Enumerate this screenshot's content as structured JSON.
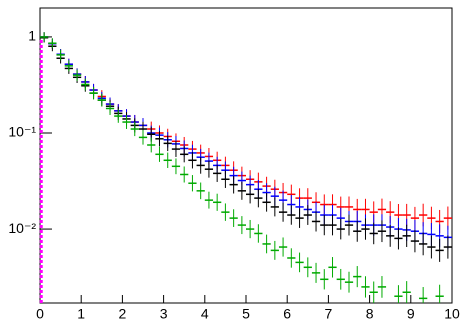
{
  "chart_data": {
    "type": "histogram",
    "log_y": true,
    "xlim": [
      0,
      10
    ],
    "xticks": [
      0,
      1,
      2,
      3,
      4,
      5,
      6,
      7,
      8,
      9,
      10
    ],
    "ylim": [
      0.0017,
      2.0
    ],
    "yticks": [
      {
        "value": 0.01,
        "label": "10⁻²"
      },
      {
        "value": 0.1,
        "label": "10⁻¹"
      },
      1
    ],
    "bins": [
      0,
      0.2,
      0.4,
      0.6,
      0.8,
      1,
      1.2,
      1.4,
      1.6,
      1.8,
      2,
      2.2,
      2.4,
      2.6,
      2.8,
      3,
      3.2,
      3.4,
      3.6,
      3.8,
      4,
      4.2,
      4.4,
      4.6,
      4.8,
      5,
      5.2,
      5.4,
      5.6,
      5.8,
      6,
      6.2,
      6.4,
      6.6,
      6.8,
      7,
      7.2,
      7.4,
      7.6,
      7.8,
      8,
      8.2,
      8.4,
      8.6,
      8.8,
      9,
      9.2,
      9.4,
      9.6,
      9.8,
      10
    ],
    "series": [
      {
        "color": "#ff0000",
        "values": [
          1.0,
          0.85,
          0.66,
          0.52,
          0.41,
          0.34,
          0.28,
          0.24,
          0.2,
          0.17,
          0.15,
          0.13,
          0.12,
          0.11,
          0.1,
          0.092,
          0.082,
          0.075,
          0.068,
          0.062,
          0.057,
          0.052,
          0.046,
          0.041,
          0.036,
          0.033,
          0.031,
          0.028,
          0.026,
          0.024,
          0.023,
          0.021,
          0.021,
          0.019,
          0.018,
          0.018,
          0.017,
          0.017,
          0.016,
          0.016,
          0.015,
          0.016,
          0.015,
          0.014,
          0.014,
          0.013,
          0.014,
          0.013,
          0.012,
          0.013
        ]
      },
      {
        "color": "#0000ff",
        "values": [
          1.0,
          0.85,
          0.66,
          0.52,
          0.41,
          0.34,
          0.28,
          0.23,
          0.2,
          0.17,
          0.15,
          0.13,
          0.12,
          0.1,
          0.095,
          0.085,
          0.077,
          0.069,
          0.062,
          0.056,
          0.051,
          0.046,
          0.041,
          0.036,
          0.032,
          0.029,
          0.026,
          0.024,
          0.022,
          0.02,
          0.018,
          0.017,
          0.016,
          0.015,
          0.014,
          0.014,
          0.013,
          0.012,
          0.012,
          0.011,
          0.011,
          0.011,
          0.0105,
          0.01,
          0.0098,
          0.0095,
          0.009,
          0.0088,
          0.0085,
          0.0082
        ]
      },
      {
        "color": "#000000",
        "values": [
          0.98,
          0.8,
          0.6,
          0.47,
          0.38,
          0.31,
          0.26,
          0.22,
          0.19,
          0.16,
          0.14,
          0.12,
          0.11,
          0.097,
          0.087,
          0.078,
          0.068,
          0.06,
          0.052,
          0.046,
          0.042,
          0.038,
          0.033,
          0.029,
          0.025,
          0.023,
          0.021,
          0.019,
          0.017,
          0.015,
          0.014,
          0.013,
          0.014,
          0.012,
          0.011,
          0.011,
          0.01,
          0.011,
          0.0095,
          0.01,
          0.009,
          0.0095,
          0.0085,
          0.008,
          0.0085,
          0.0075,
          0.007,
          0.0065,
          0.006,
          0.0065
        ]
      },
      {
        "color": "#00aa00",
        "values": [
          1.0,
          0.86,
          0.65,
          0.5,
          0.4,
          0.32,
          0.26,
          0.22,
          0.18,
          0.15,
          0.13,
          0.11,
          0.09,
          0.075,
          0.06,
          0.052,
          0.045,
          0.037,
          0.03,
          0.025,
          0.02,
          0.019,
          0.015,
          0.013,
          0.011,
          0.01,
          0.009,
          0.007,
          0.006,
          0.0065,
          0.005,
          0.0045,
          0.004,
          0.0035,
          0.003,
          0.004,
          0.003,
          0.0028,
          0.0032,
          0.0025,
          0.0022,
          0.0025,
          null,
          0.002,
          0.0022,
          null,
          0.0019,
          null,
          0.002,
          null
        ]
      }
    ],
    "spike": {
      "x": 0.03,
      "value": 0.95,
      "color": "#ff00ff"
    }
  }
}
